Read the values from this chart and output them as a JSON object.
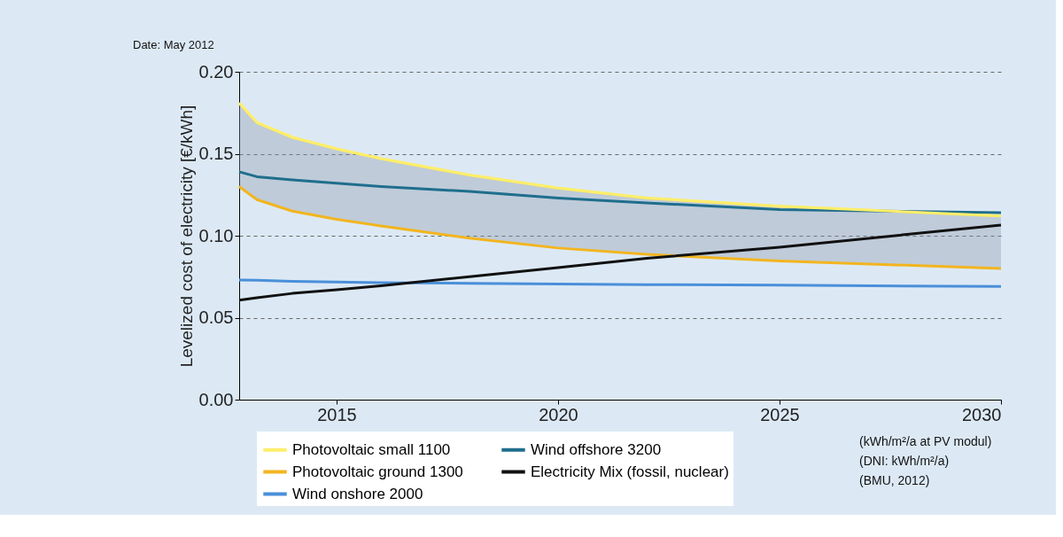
{
  "chart_data": {
    "type": "line",
    "ylabel": "Levelized cost of electricity [€/kWh]",
    "x": [
      2012.8,
      2013.2,
      2014,
      2015,
      2016,
      2018,
      2020,
      2022,
      2025,
      2030
    ],
    "xlim": [
      2012.8,
      2030
    ],
    "xticks": [
      2015,
      2020,
      2025,
      2030
    ],
    "ylim": [
      0,
      0.2
    ],
    "yticks": [
      {
        "value": 0,
        "label": "0.00"
      },
      0.05,
      {
        "value": 0.1,
        "label": "0.10"
      },
      0.15,
      {
        "value": 0.2,
        "label": "0.20"
      }
    ],
    "grid": "y",
    "legend": "bottom",
    "line_style": "solid",
    "marker": "none",
    "series": [
      {
        "name": "Photovoltaic small 1100",
        "color": "#fdee6a",
        "values": [
          0.181,
          0.169,
          0.16,
          0.153,
          0.147,
          0.137,
          0.129,
          0.123,
          0.118,
          0.112
        ],
        "lower": [
          0.13,
          0.122,
          0.115,
          0.11,
          0.106,
          0.0985,
          0.0925,
          0.0886,
          0.0846,
          0.08
        ],
        "upper": [
          0.181,
          0.169,
          0.16,
          0.153,
          0.147,
          0.137,
          0.129,
          0.123,
          0.118,
          0.112
        ]
      },
      {
        "name": "Photovoltaic  ground 1300",
        "color": "#f2b51f",
        "values": [
          0.13,
          0.122,
          0.115,
          0.11,
          0.106,
          0.0985,
          0.0925,
          0.0886,
          0.0846,
          0.08
        ]
      },
      {
        "name": "Wind onshore 2000",
        "color": "#4a8fd9",
        "values": [
          0.073,
          0.0728,
          0.0722,
          0.0718,
          0.0714,
          0.071,
          0.0706,
          0.0702,
          0.0698,
          0.069
        ]
      },
      {
        "name": "Wind offshore 3200",
        "color": "#1f6e8c",
        "values": [
          0.139,
          0.136,
          0.134,
          0.132,
          0.13,
          0.127,
          0.123,
          0.12,
          0.116,
          0.114
        ]
      },
      {
        "name": "Electricity Mix (fossil, nuclear)",
        "color": "#111111",
        "values": [
          0.0607,
          0.0622,
          0.0648,
          0.067,
          0.0695,
          0.075,
          0.0806,
          0.0862,
          0.093,
          0.1065
        ]
      }
    ],
    "annotations": [
      "Date: May 2012",
      "(kWh/m²/a at PV modul)",
      "(DNI: kWh/m²/a)",
      "(BMU, 2012)"
    ]
  }
}
